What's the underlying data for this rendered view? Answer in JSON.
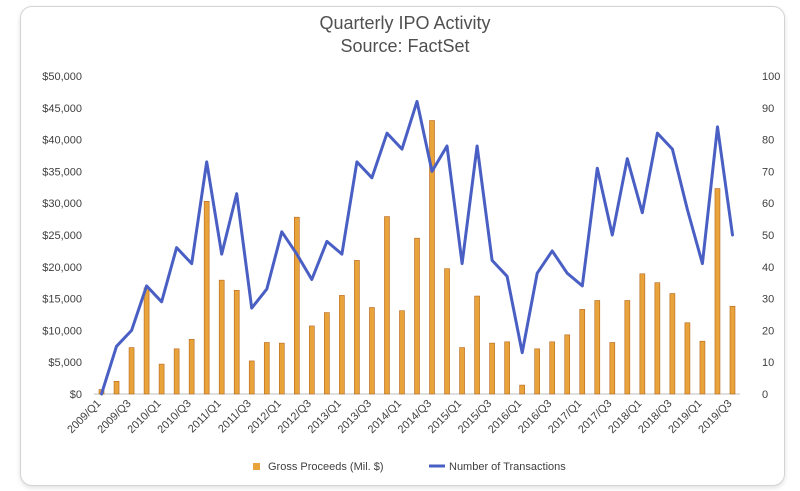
{
  "chart_data": {
    "type": "bar",
    "title": "Quarterly IPO Activity",
    "subtitle": "Source: FactSet",
    "categories": [
      "2009/Q1",
      "2009/Q2",
      "2009/Q3",
      "2009/Q4",
      "2010/Q1",
      "2010/Q2",
      "2010/Q3",
      "2010/Q4",
      "2011/Q1",
      "2011/Q2",
      "2011/Q3",
      "2011/Q4",
      "2012/Q1",
      "2012/Q2",
      "2012/Q3",
      "2012/Q4",
      "2013/Q1",
      "2013/Q2",
      "2013/Q3",
      "2013/Q4",
      "2014/Q1",
      "2014/Q2",
      "2014/Q3",
      "2014/Q4",
      "2015/Q1",
      "2015/Q2",
      "2015/Q3",
      "2015/Q4",
      "2016/Q1",
      "2016/Q2",
      "2016/Q3",
      "2016/Q4",
      "2017/Q1",
      "2017/Q2",
      "2017/Q3",
      "2017/Q4",
      "2018/Q1",
      "2018/Q2",
      "2018/Q3",
      "2018/Q4",
      "2019/Q1",
      "2019/Q2",
      "2019/Q3"
    ],
    "tick_labels": [
      "2009/Q1",
      "2009/Q3",
      "2010/Q1",
      "2010/Q3",
      "2011/Q1",
      "2011/Q3",
      "2012/Q1",
      "2012/Q3",
      "2013/Q1",
      "2013/Q3",
      "2014/Q1",
      "2014/Q3",
      "2015/Q1",
      "2015/Q3",
      "2016/Q1",
      "2016/Q3",
      "2017/Q1",
      "2017/Q3",
      "2018/Q1",
      "2018/Q3",
      "2019/Q1",
      "2019/Q3"
    ],
    "series": [
      {
        "name": "Gross Proceeds (Mil. $)",
        "kind": "bar",
        "axis": "left",
        "color": "#e8a33a",
        "values": [
          700,
          2000,
          7300,
          16700,
          4700,
          7100,
          8600,
          30300,
          17900,
          16300,
          5200,
          8100,
          8000,
          27800,
          10700,
          12800,
          15500,
          21000,
          13600,
          27900,
          13100,
          24500,
          43000,
          19700,
          7300,
          15400,
          8000,
          8200,
          1400,
          7100,
          8200,
          9300,
          13300,
          14700,
          8100,
          14700,
          18900,
          17500,
          15800,
          11200,
          8300,
          32300,
          13800
        ]
      },
      {
        "name": "Number of Transactions",
        "kind": "line",
        "axis": "right",
        "color": "#4a5fc4",
        "values": [
          0,
          15,
          20,
          34,
          29,
          46,
          41,
          73,
          44,
          63,
          27,
          33,
          51,
          44,
          36,
          48,
          44,
          73,
          68,
          82,
          77,
          92,
          70,
          78,
          41,
          78,
          42,
          37,
          13,
          38,
          45,
          38,
          34,
          71,
          50,
          74,
          57,
          82,
          77,
          58,
          41,
          84,
          50
        ]
      }
    ],
    "y_left": {
      "ylim": [
        0,
        50000
      ],
      "tick_labels": [
        "$0",
        "$5,000",
        "$10,000",
        "$15,000",
        "$20,000",
        "$25,000",
        "$30,000",
        "$35,000",
        "$40,000",
        "$45,000",
        "$50,000"
      ]
    },
    "y_right": {
      "ylim": [
        0,
        100
      ],
      "tick_labels": [
        "0",
        "10",
        "20",
        "30",
        "40",
        "50",
        "60",
        "70",
        "80",
        "90",
        "100"
      ]
    },
    "grid": false,
    "legend_position": "bottom"
  }
}
